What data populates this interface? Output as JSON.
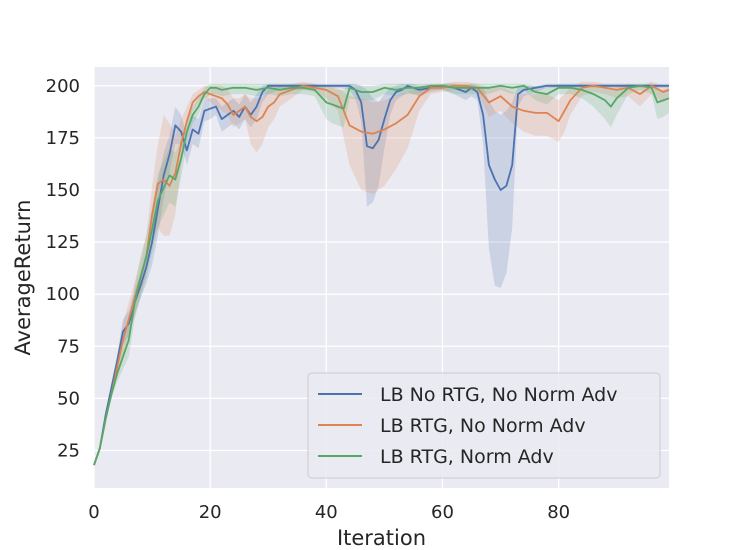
{
  "chart_data": {
    "type": "line",
    "xlabel": "Iteration",
    "ylabel": "AverageReturn",
    "xlim": [
      0,
      99
    ],
    "ylim": [
      7,
      209
    ],
    "xticks": [
      0,
      20,
      40,
      60,
      80
    ],
    "yticks": [
      25,
      50,
      75,
      100,
      125,
      150,
      175,
      200
    ],
    "grid": true,
    "legend_position": "lower-right",
    "series": [
      {
        "name": "LB No RTG, No Norm Adv",
        "color": "#4c72b0",
        "x": [
          0,
          1,
          2,
          3,
          4,
          5,
          6,
          7,
          8,
          9,
          10,
          11,
          12,
          13,
          14,
          15,
          16,
          17,
          18,
          19,
          20,
          21,
          22,
          23,
          24,
          25,
          26,
          27,
          28,
          29,
          30,
          32,
          34,
          36,
          38,
          40,
          42,
          44,
          45,
          46,
          47,
          48,
          49,
          50,
          51,
          52,
          53,
          54,
          55,
          56,
          58,
          60,
          62,
          64,
          65,
          66,
          67,
          68,
          69,
          70,
          71,
          72,
          73,
          74,
          76,
          78,
          80,
          82,
          85,
          90,
          95,
          99
        ],
        "y": [
          18,
          26,
          42,
          55,
          68,
          82,
          86,
          96,
          104,
          113,
          125,
          141,
          157,
          167,
          181,
          178,
          169,
          179,
          177,
          188,
          189,
          190,
          184,
          186,
          188,
          185,
          190,
          186,
          190,
          197,
          200,
          200,
          200,
          200,
          200,
          200,
          200,
          200,
          198,
          192,
          171,
          170,
          174,
          184,
          193,
          197,
          198,
          200,
          199,
          198,
          199,
          200,
          199,
          197,
          199,
          197,
          186,
          162,
          155,
          150,
          152,
          162,
          196,
          198,
          199,
          200,
          200,
          200,
          200,
          200,
          200,
          200
        ],
        "lower": [
          18,
          26,
          42,
          53,
          65,
          76,
          80,
          90,
          98,
          105,
          114,
          128,
          146,
          158,
          172,
          172,
          162,
          172,
          170,
          183,
          184,
          186,
          178,
          180,
          182,
          179,
          184,
          180,
          184,
          192,
          196,
          198,
          198,
          198,
          198,
          199,
          199,
          198,
          194,
          183,
          142,
          144,
          152,
          170,
          186,
          193,
          195,
          197,
          196,
          195,
          197,
          198,
          196,
          193,
          195,
          193,
          172,
          122,
          104,
          103,
          110,
          132,
          190,
          195,
          197,
          199,
          199,
          199,
          199,
          199,
          199,
          199
        ],
        "upper": [
          18,
          26,
          42,
          57,
          71,
          88,
          92,
          102,
          110,
          121,
          136,
          154,
          168,
          176,
          190,
          186,
          176,
          186,
          184,
          193,
          194,
          194,
          190,
          192,
          194,
          191,
          196,
          192,
          196,
          200,
          201,
          201,
          201,
          201,
          201,
          201,
          201,
          201,
          201,
          200,
          198,
          194,
          192,
          196,
          199,
          200,
          201,
          201,
          201,
          200,
          200,
          201,
          201,
          200,
          201,
          200,
          199,
          193,
          188,
          186,
          188,
          192,
          200,
          200,
          200,
          201,
          201,
          201,
          201,
          201,
          201,
          201
        ]
      },
      {
        "name": "LB RTG, No Norm Adv",
        "color": "#dd8452",
        "x": [
          0,
          1,
          2,
          3,
          4,
          5,
          6,
          7,
          8,
          9,
          10,
          11,
          12,
          13,
          14,
          15,
          16,
          17,
          18,
          19,
          20,
          21,
          22,
          23,
          24,
          25,
          26,
          27,
          28,
          29,
          30,
          31,
          32,
          34,
          36,
          38,
          40,
          42,
          44,
          46,
          48,
          50,
          52,
          54,
          56,
          58,
          60,
          62,
          64,
          66,
          68,
          70,
          72,
          74,
          76,
          78,
          80,
          81,
          82,
          84,
          86,
          88,
          90,
          92,
          94,
          96,
          98,
          99
        ],
        "y": [
          18,
          26,
          40,
          52,
          65,
          78,
          88,
          98,
          108,
          118,
          138,
          153,
          155,
          152,
          158,
          172,
          183,
          192,
          195,
          197,
          196,
          195,
          194,
          191,
          186,
          188,
          190,
          185,
          183,
          185,
          190,
          192,
          196,
          198,
          200,
          199,
          198,
          195,
          181,
          178,
          177,
          179,
          182,
          186,
          195,
          199,
          199,
          200,
          200,
          199,
          192,
          195,
          190,
          188,
          187,
          187,
          183,
          188,
          193,
          199,
          200,
          199,
          198,
          199,
          196,
          200,
          197,
          198
        ],
        "lower": [
          18,
          26,
          40,
          50,
          60,
          70,
          80,
          90,
          100,
          110,
          126,
          132,
          128,
          128,
          138,
          162,
          176,
          188,
          192,
          194,
          192,
          190,
          188,
          186,
          180,
          182,
          184,
          172,
          168,
          172,
          180,
          184,
          190,
          194,
          198,
          197,
          194,
          188,
          162,
          150,
          148,
          152,
          160,
          170,
          188,
          196,
          197,
          198,
          198,
          197,
          185,
          188,
          182,
          178,
          176,
          176,
          173,
          178,
          186,
          195,
          197,
          196,
          194,
          195,
          190,
          196,
          192,
          194
        ],
        "upper": [
          18,
          26,
          40,
          55,
          70,
          86,
          96,
          106,
          116,
          128,
          152,
          172,
          186,
          182,
          176,
          184,
          190,
          196,
          198,
          200,
          200,
          200,
          200,
          198,
          194,
          194,
          196,
          194,
          194,
          194,
          198,
          199,
          200,
          201,
          202,
          201,
          200,
          199,
          195,
          194,
          192,
          193,
          195,
          197,
          200,
          201,
          201,
          202,
          202,
          201,
          199,
          200,
          197,
          196,
          196,
          196,
          193,
          196,
          199,
          202,
          202,
          201,
          201,
          201,
          200,
          202,
          200,
          200
        ]
      },
      {
        "name": "LB RTG, Norm Adv",
        "color": "#55a868",
        "x": [
          0,
          1,
          2,
          3,
          4,
          5,
          6,
          7,
          8,
          9,
          10,
          11,
          12,
          13,
          14,
          15,
          16,
          17,
          18,
          19,
          20,
          21,
          22,
          24,
          26,
          28,
          30,
          32,
          34,
          36,
          38,
          40,
          41,
          42,
          43,
          44,
          46,
          48,
          50,
          52,
          54,
          56,
          58,
          60,
          62,
          64,
          66,
          68,
          70,
          72,
          74,
          76,
          78,
          80,
          82,
          84,
          86,
          88,
          89,
          90,
          92,
          94,
          96,
          97,
          98,
          99
        ],
        "y": [
          18,
          26,
          40,
          52,
          62,
          70,
          78,
          96,
          108,
          118,
          131,
          145,
          151,
          157,
          155,
          165,
          178,
          186,
          190,
          196,
          199,
          199,
          198,
          199,
          199,
          198,
          199,
          198,
          199,
          199,
          198,
          192,
          191,
          190,
          189,
          199,
          197,
          197,
          199,
          198,
          199,
          199,
          200,
          200,
          199,
          199,
          199,
          199,
          200,
          199,
          200,
          197,
          196,
          199,
          199,
          198,
          196,
          193,
          190,
          194,
          199,
          200,
          199,
          192,
          193,
          194
        ],
        "lower": [
          18,
          26,
          40,
          50,
          58,
          64,
          70,
          88,
          98,
          108,
          120,
          132,
          138,
          144,
          142,
          156,
          172,
          182,
          186,
          193,
          196,
          196,
          195,
          196,
          196,
          195,
          196,
          195,
          196,
          196,
          195,
          184,
          182,
          181,
          180,
          194,
          193,
          193,
          196,
          195,
          196,
          196,
          198,
          198,
          196,
          196,
          196,
          196,
          198,
          196,
          198,
          193,
          191,
          196,
          196,
          194,
          190,
          184,
          180,
          186,
          196,
          198,
          196,
          184,
          185,
          187
        ],
        "upper": [
          18,
          26,
          40,
          54,
          66,
          76,
          86,
          104,
          118,
          128,
          142,
          158,
          164,
          170,
          168,
          174,
          184,
          190,
          194,
          199,
          201,
          201,
          201,
          201,
          201,
          201,
          201,
          201,
          201,
          201,
          201,
          199,
          199,
          198,
          198,
          201,
          200,
          200,
          201,
          201,
          201,
          201,
          201,
          201,
          201,
          201,
          201,
          201,
          201,
          201,
          201,
          200,
          199,
          201,
          201,
          201,
          200,
          199,
          198,
          199,
          201,
          201,
          201,
          198,
          198,
          199
        ]
      }
    ]
  }
}
